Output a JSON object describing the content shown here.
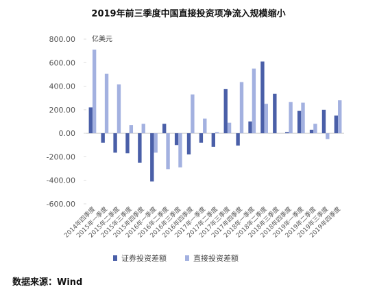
{
  "chart_data": {
    "type": "bar",
    "title": "2019年前三季度中国直接投资项净流入规模缩小",
    "unit": "亿美元",
    "source": "数据来源：Wind",
    "categories": [
      "2014年四季度",
      "2015年一季度",
      "2015年二季度",
      "2015年三季度",
      "2015年四季度",
      "2016年一季度",
      "2016年二季度",
      "2016年三季度",
      "2016年四季度",
      "2017年一季度",
      "2017年二季度",
      "2017年三季度",
      "2017年四季度",
      "2018年一季度",
      "2018年二季度",
      "2018年三季度",
      "2018年四季度",
      "2019年一季度",
      "2019年二季度",
      "2019年三季度",
      "2019年四季度"
    ],
    "series": [
      {
        "name": "证券投资差额",
        "color": "#4a5fa8",
        "values": [
          220,
          -80,
          -165,
          -170,
          -250,
          -410,
          80,
          -100,
          -180,
          -80,
          -115,
          375,
          -105,
          100,
          610,
          335,
          10,
          190,
          30,
          200,
          150
        ]
      },
      {
        "name": "直接投资差额",
        "color": "#a3b1e0",
        "values": [
          710,
          505,
          415,
          70,
          80,
          -165,
          -305,
          -290,
          330,
          125,
          10,
          90,
          435,
          550,
          250,
          0,
          265,
          260,
          80,
          -50,
          280
        ]
      }
    ],
    "ylim": [
      -600,
      800
    ],
    "yticks": [
      {
        "value": -600,
        "label": "-600.00"
      },
      {
        "value": -400,
        "label": "-400.00"
      },
      {
        "value": -200,
        "label": "-200.00"
      },
      {
        "value": 0,
        "label": "0.00"
      },
      {
        "value": 200,
        "label": "200.00"
      },
      {
        "value": 400,
        "label": "400.00"
      },
      {
        "value": 600,
        "label": "600.00"
      },
      {
        "value": 800,
        "label": "800.00"
      }
    ]
  }
}
